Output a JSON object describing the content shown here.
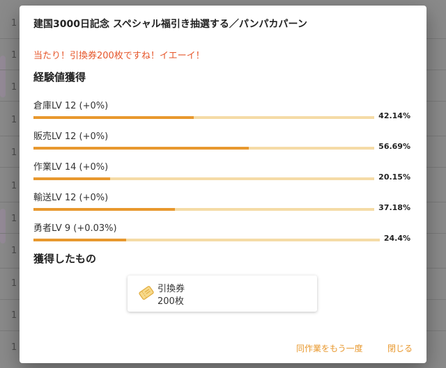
{
  "dialog": {
    "title": "建国3000日記念 スペシャル福引き抽選する／パンパカパーン",
    "result_message": "当たり！引換券200枚ですね！イエーイ！",
    "exp_heading": "経験値獲得",
    "skills": [
      {
        "label": "倉庫LV 12 (+0%)",
        "percent_text": "42.14%",
        "progress": 0.4214
      },
      {
        "label": "販売LV 12 (+0%)",
        "percent_text": "56.69%",
        "progress": 0.5669
      },
      {
        "label": "作業LV 14 (+0%)",
        "percent_text": "20.15%",
        "progress": 0.2015
      },
      {
        "label": "輸送LV 12 (+0%)",
        "percent_text": "37.18%",
        "progress": 0.3718
      },
      {
        "label": "勇者LV 9 (+0.03%)",
        "percent_text": "24.4%",
        "progress": 0.244
      }
    ],
    "rewards_heading": "獲得したもの",
    "reward": {
      "name": "引換券",
      "quantity": "200枚",
      "icon": "ticket-icon"
    },
    "buttons": {
      "repeat_label": "同作業をもう一度",
      "close_label": "閉じる"
    }
  },
  "background": {
    "row_numbers": [
      "1",
      "1",
      "1",
      "1",
      "1",
      "1",
      "1",
      "1",
      "1",
      "1",
      "1",
      "1"
    ]
  },
  "colors": {
    "accent": "#e8982e",
    "track": "#f5dba6",
    "message": "#e6562a"
  }
}
